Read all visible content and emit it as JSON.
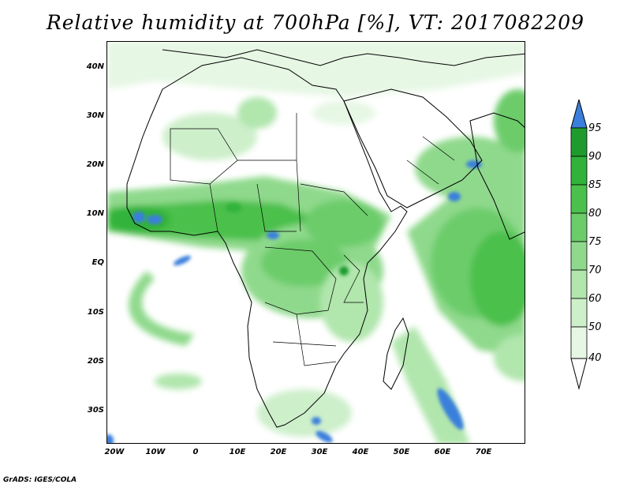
{
  "title": "Relative humidity at 700hPa [%], VT: 2017082209",
  "footer": "GrADS: IGES/COLA",
  "axes": {
    "lat_labels": [
      "40N",
      "30N",
      "20N",
      "10N",
      "EQ",
      "10S",
      "20S",
      "30S"
    ],
    "lon_labels": [
      "20W",
      "10W",
      "0",
      "10E",
      "20E",
      "30E",
      "40E",
      "50E",
      "60E",
      "70E"
    ]
  },
  "colorbar": {
    "levels": [
      "95",
      "90",
      "85",
      "80",
      "75",
      "70",
      "60",
      "50",
      "40"
    ],
    "colors": [
      "#3a7fdc",
      "#1f9b2e",
      "#31b33b",
      "#4cc04c",
      "#6ccc6a",
      "#8fd98c",
      "#b1e6ad",
      "#cdefca",
      "#e6f7e4"
    ],
    "over_color": "#3a7fdc",
    "under_color": "#ffffff"
  },
  "colors": {
    "land_outline": "#000000",
    "background": "#ffffff"
  }
}
